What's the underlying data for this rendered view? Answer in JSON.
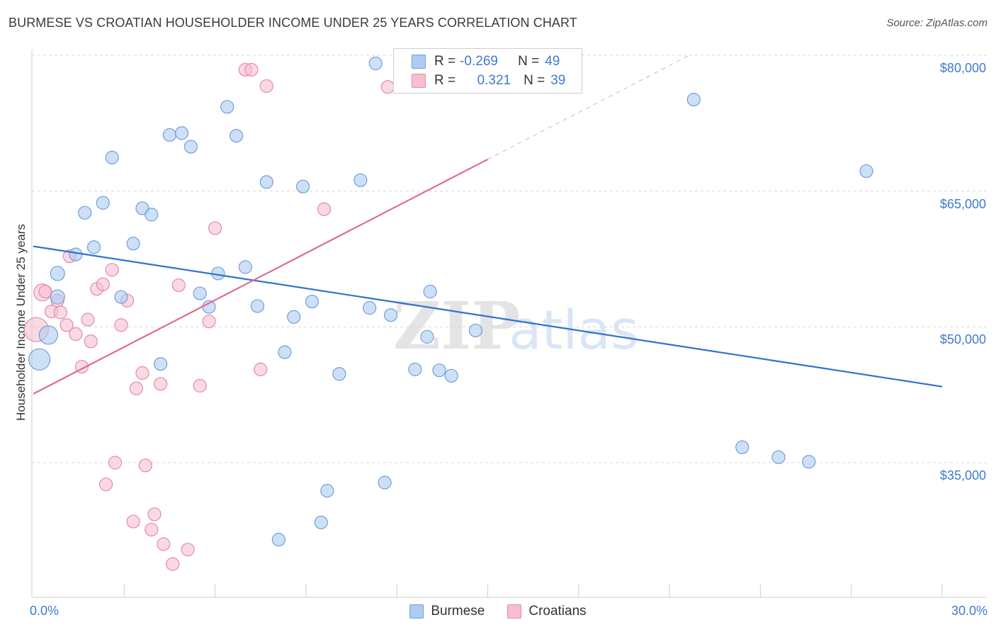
{
  "title": "BURMESE VS CROATIAN HOUSEHOLDER INCOME UNDER 25 YEARS CORRELATION CHART",
  "source": "Source: ZipAtlas.com",
  "legend": {
    "r_label": "R =",
    "n_label": "N =",
    "burmese": {
      "r": "-0.269",
      "n": "49"
    },
    "croatians": {
      "r": "0.321",
      "n": "39"
    }
  },
  "colors": {
    "burmese_fill": "#aecbf0",
    "burmese_edge": "#6f9fdc",
    "burmese_line": "#2f72d0",
    "croatians_fill": "#f6bfd0",
    "croatians_edge": "#e48aa8",
    "croatians_line": "#e06a93",
    "tick_text": "#3e7bd0",
    "grid": "#d8d8d8"
  },
  "chart_data": {
    "type": "scatter",
    "ylabel": "Householder Income Under 25 years",
    "xlim": [
      0,
      30
    ],
    "ylim": [
      22000,
      83000
    ],
    "x_ticks": [
      "0.0%",
      "30.0%"
    ],
    "y_ticks": [
      {
        "value": 35000,
        "label": "$35,000"
      },
      {
        "value": 50000,
        "label": "$50,000"
      },
      {
        "value": 65000,
        "label": "$65,000"
      },
      {
        "value": 80000,
        "label": "$80,000"
      }
    ],
    "grid": true,
    "watermark": {
      "zip": "ZIP",
      "atlas": "atlas"
    },
    "series": [
      {
        "name": "Burmese",
        "trend": {
          "x1": 0.0,
          "y1": 58900,
          "x2": 30.0,
          "y2": 43400
        },
        "points": [
          [
            0.2,
            46400,
            15
          ],
          [
            0.5,
            49100,
            13
          ],
          [
            0.8,
            55900,
            10
          ],
          [
            0.8,
            53300,
            10
          ],
          [
            1.4,
            58000,
            9
          ],
          [
            1.7,
            62600,
            9
          ],
          [
            2.0,
            58800,
            9
          ],
          [
            2.3,
            63700,
            9
          ],
          [
            2.6,
            68700,
            9
          ],
          [
            2.9,
            53300,
            9
          ],
          [
            3.3,
            59200,
            9
          ],
          [
            3.6,
            63100,
            9
          ],
          [
            3.9,
            62400,
            9
          ],
          [
            4.2,
            45900,
            9
          ],
          [
            4.5,
            71200,
            9
          ],
          [
            4.9,
            71400,
            9
          ],
          [
            5.2,
            69900,
            9
          ],
          [
            5.5,
            53700,
            9
          ],
          [
            5.8,
            52200,
            9
          ],
          [
            6.1,
            55900,
            9
          ],
          [
            6.4,
            74300,
            9
          ],
          [
            6.7,
            71100,
            9
          ],
          [
            7.0,
            56600,
            9
          ],
          [
            7.4,
            52300,
            9
          ],
          [
            7.7,
            66000,
            9
          ],
          [
            8.1,
            26500,
            9
          ],
          [
            8.3,
            47200,
            9
          ],
          [
            8.6,
            51100,
            9
          ],
          [
            8.9,
            65500,
            9
          ],
          [
            9.2,
            52800,
            9
          ],
          [
            9.5,
            28400,
            9
          ],
          [
            9.7,
            31900,
            9
          ],
          [
            10.1,
            44800,
            9
          ],
          [
            10.8,
            66200,
            9
          ],
          [
            11.1,
            52100,
            9
          ],
          [
            11.3,
            79100,
            9
          ],
          [
            11.6,
            32800,
            9
          ],
          [
            11.8,
            51300,
            9
          ],
          [
            12.6,
            45300,
            9
          ],
          [
            13.0,
            48900,
            9
          ],
          [
            13.1,
            53900,
            9
          ],
          [
            13.4,
            45200,
            9
          ],
          [
            13.8,
            44600,
            9
          ],
          [
            14.6,
            49600,
            9
          ],
          [
            21.8,
            75100,
            9
          ],
          [
            23.4,
            36700,
            9
          ],
          [
            24.6,
            35600,
            9
          ],
          [
            25.6,
            35100,
            9
          ],
          [
            27.5,
            67200,
            9
          ]
        ]
      },
      {
        "name": "Croatians",
        "trend": {
          "x1": 0.0,
          "y1": 42600,
          "x2": 15.0,
          "y2": 68500,
          "dash_x2": 21.6,
          "dash_y2": 79900
        },
        "points": [
          [
            0.1,
            49700,
            17
          ],
          [
            0.3,
            53800,
            12
          ],
          [
            0.4,
            53900,
            9
          ],
          [
            0.6,
            51700,
            9
          ],
          [
            0.8,
            52900,
            9
          ],
          [
            0.9,
            51600,
            9
          ],
          [
            1.1,
            50200,
            9
          ],
          [
            1.2,
            57800,
            9
          ],
          [
            1.4,
            49200,
            9
          ],
          [
            1.6,
            45600,
            9
          ],
          [
            1.8,
            50800,
            9
          ],
          [
            1.9,
            48400,
            9
          ],
          [
            2.1,
            54200,
            9
          ],
          [
            2.3,
            54700,
            9
          ],
          [
            2.4,
            32600,
            9
          ],
          [
            2.6,
            56300,
            9
          ],
          [
            2.7,
            35000,
            9
          ],
          [
            2.9,
            50200,
            9
          ],
          [
            3.1,
            52900,
            9
          ],
          [
            3.3,
            28500,
            9
          ],
          [
            3.4,
            43200,
            9
          ],
          [
            3.6,
            44900,
            9
          ],
          [
            3.7,
            34700,
            9
          ],
          [
            3.9,
            27600,
            9
          ],
          [
            4.0,
            29300,
            9
          ],
          [
            4.2,
            43700,
            9
          ],
          [
            4.3,
            26000,
            9
          ],
          [
            4.6,
            23800,
            9
          ],
          [
            4.8,
            54600,
            9
          ],
          [
            5.1,
            25400,
            9
          ],
          [
            5.5,
            43500,
            9
          ],
          [
            5.8,
            50600,
            9
          ],
          [
            6.0,
            60900,
            9
          ],
          [
            7.0,
            78400,
            9
          ],
          [
            7.2,
            78400,
            9
          ],
          [
            7.5,
            45300,
            9
          ],
          [
            7.7,
            76600,
            9
          ],
          [
            9.6,
            63000,
            9
          ],
          [
            11.7,
            76500,
            9
          ]
        ]
      }
    ]
  }
}
